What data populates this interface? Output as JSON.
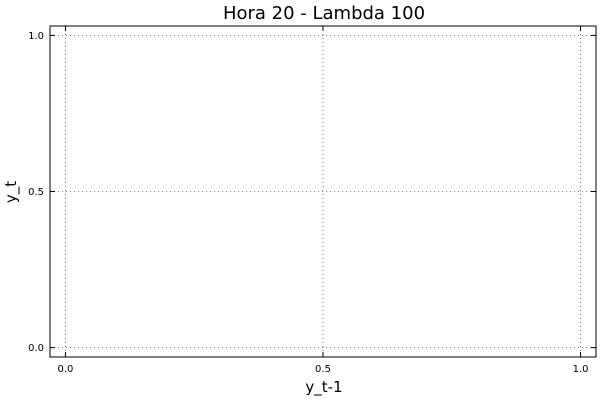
{
  "chart_data": {
    "type": "scatter",
    "title": "Hora 20 - Lambda 100",
    "xlabel": "y_t-1",
    "ylabel": "y_t",
    "xlim": [
      -0.03,
      1.03
    ],
    "ylim": [
      -0.03,
      1.03
    ],
    "xticks": [
      0.0,
      0.5,
      1.0
    ],
    "yticks": [
      0.0,
      0.5,
      1.0
    ],
    "xtick_labels": [
      "0.0",
      "0.5",
      "1.0"
    ],
    "ytick_labels": [
      "0.0",
      "0.5",
      "1.0"
    ],
    "grid": true,
    "series": []
  }
}
